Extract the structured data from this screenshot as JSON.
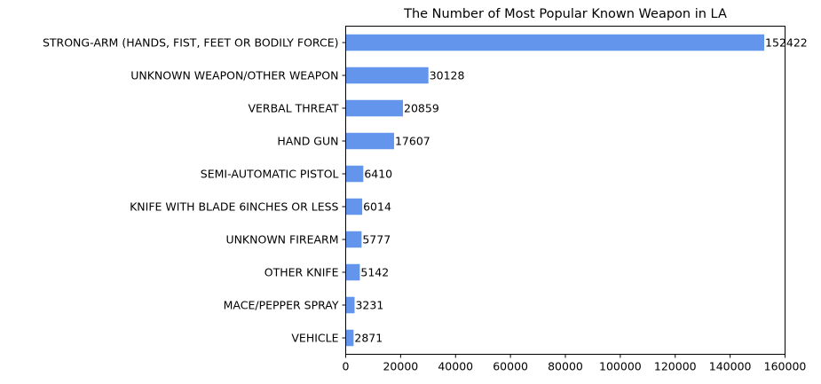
{
  "chart_data": {
    "type": "bar",
    "orientation": "horizontal",
    "title": "The Number of Most Popular Known Weapon in LA",
    "xlabel": "",
    "ylabel": "",
    "categories": [
      "STRONG-ARM (HANDS, FIST, FEET OR BODILY FORCE)",
      "UNKNOWN WEAPON/OTHER WEAPON",
      "VERBAL THREAT",
      "HAND GUN",
      "SEMI-AUTOMATIC PISTOL",
      "KNIFE WITH BLADE 6INCHES OR LESS",
      "UNKNOWN FIREARM",
      "OTHER KNIFE",
      "MACE/PEPPER SPRAY",
      "VEHICLE"
    ],
    "values": [
      152422,
      30128,
      20859,
      17607,
      6410,
      6014,
      5777,
      5142,
      3231,
      2871
    ],
    "xlim": [
      0,
      160000
    ],
    "xticks": [
      "0",
      "20000",
      "40000",
      "60000",
      "80000",
      "100000",
      "120000",
      "140000",
      "160000"
    ],
    "bar_color": "#6495ED",
    "grid": false,
    "legend": "none"
  }
}
